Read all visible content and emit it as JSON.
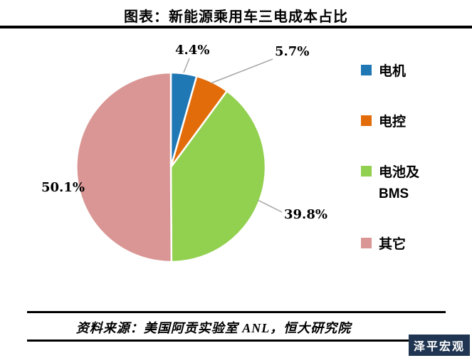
{
  "title": "图表：新能源乘用车三电成本占比",
  "chart_data": {
    "type": "pie",
    "categories": [
      "电机",
      "电控",
      "电池及BMS",
      "其它"
    ],
    "values": [
      4.4,
      5.7,
      39.8,
      50.1
    ],
    "labels": [
      "4.4%",
      "5.7%",
      "39.8%",
      "50.1%"
    ],
    "colors": [
      "#1F77B4",
      "#E36C0A",
      "#92D050",
      "#D99694"
    ],
    "start_angle": "top",
    "direction": "clockwise",
    "legend_position": "right",
    "title": "图表：新能源乘用车三电成本占比"
  },
  "legend": {
    "items": [
      {
        "label": "电机",
        "color": "#1F77B4"
      },
      {
        "label": "电控",
        "color": "#E36C0A"
      },
      {
        "label": "电池及BMS",
        "color": "#92D050"
      },
      {
        "label": "其它",
        "color": "#D99694"
      }
    ]
  },
  "footer": {
    "source": "资料来源：美国阿贡实验室 ANL，恒大研究院",
    "watermark": "泽平宏观",
    "watermark_bg": "#1F3551"
  }
}
